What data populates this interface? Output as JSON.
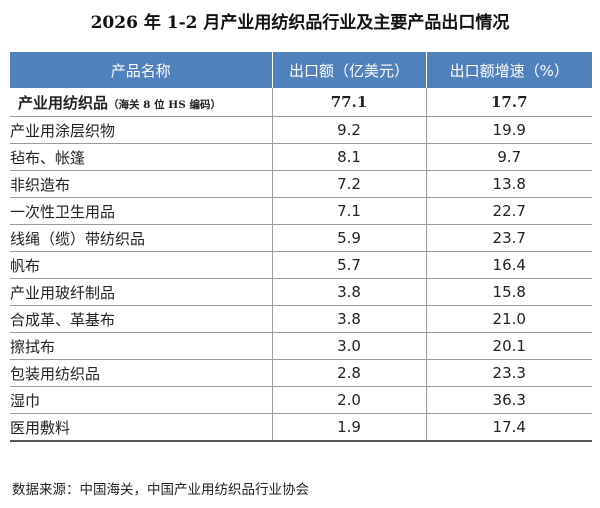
{
  "title": "2026 年 1-2 月产业用纺织品行业及主要产品出口情况",
  "columns": [
    "产品名称",
    "出口额（亿美元）",
    "出口额增速（%）"
  ],
  "total": {
    "name": "产业用纺织品",
    "note": "（海关 8 位 HS 编码）",
    "export": "77.1",
    "growth": "17.7"
  },
  "rows": [
    {
      "name": "产业用涂层织物",
      "export": "9.2",
      "growth": "19.9"
    },
    {
      "name": "毡布、帐篷",
      "export": "8.1",
      "growth": "9.7"
    },
    {
      "name": "非织造布",
      "export": "7.2",
      "growth": "13.8"
    },
    {
      "name": "一次性卫生用品",
      "export": "7.1",
      "growth": "22.7"
    },
    {
      "name": "线绳（缆）带纺织品",
      "export": "5.9",
      "growth": "23.7"
    },
    {
      "name": "帆布",
      "export": "5.7",
      "growth": "16.4"
    },
    {
      "name": "产业用玻纤制品",
      "export": "3.8",
      "growth": "15.8"
    },
    {
      "name": "合成革、革基布",
      "export": "3.8",
      "growth": "21.0"
    },
    {
      "name": "擦拭布",
      "export": "3.0",
      "growth": "20.1"
    },
    {
      "name": "包装用纺织品",
      "export": "2.8",
      "growth": "23.3"
    },
    {
      "name": "湿巾",
      "export": "2.0",
      "growth": "36.3"
    },
    {
      "name": "医用敷料",
      "export": "1.9",
      "growth": "17.4"
    }
  ],
  "source": "数据来源：中国海关，中国产业用纺织品行业协会",
  "colors": {
    "header_bg": "#4f81bd",
    "header_text": "#ffffff"
  }
}
